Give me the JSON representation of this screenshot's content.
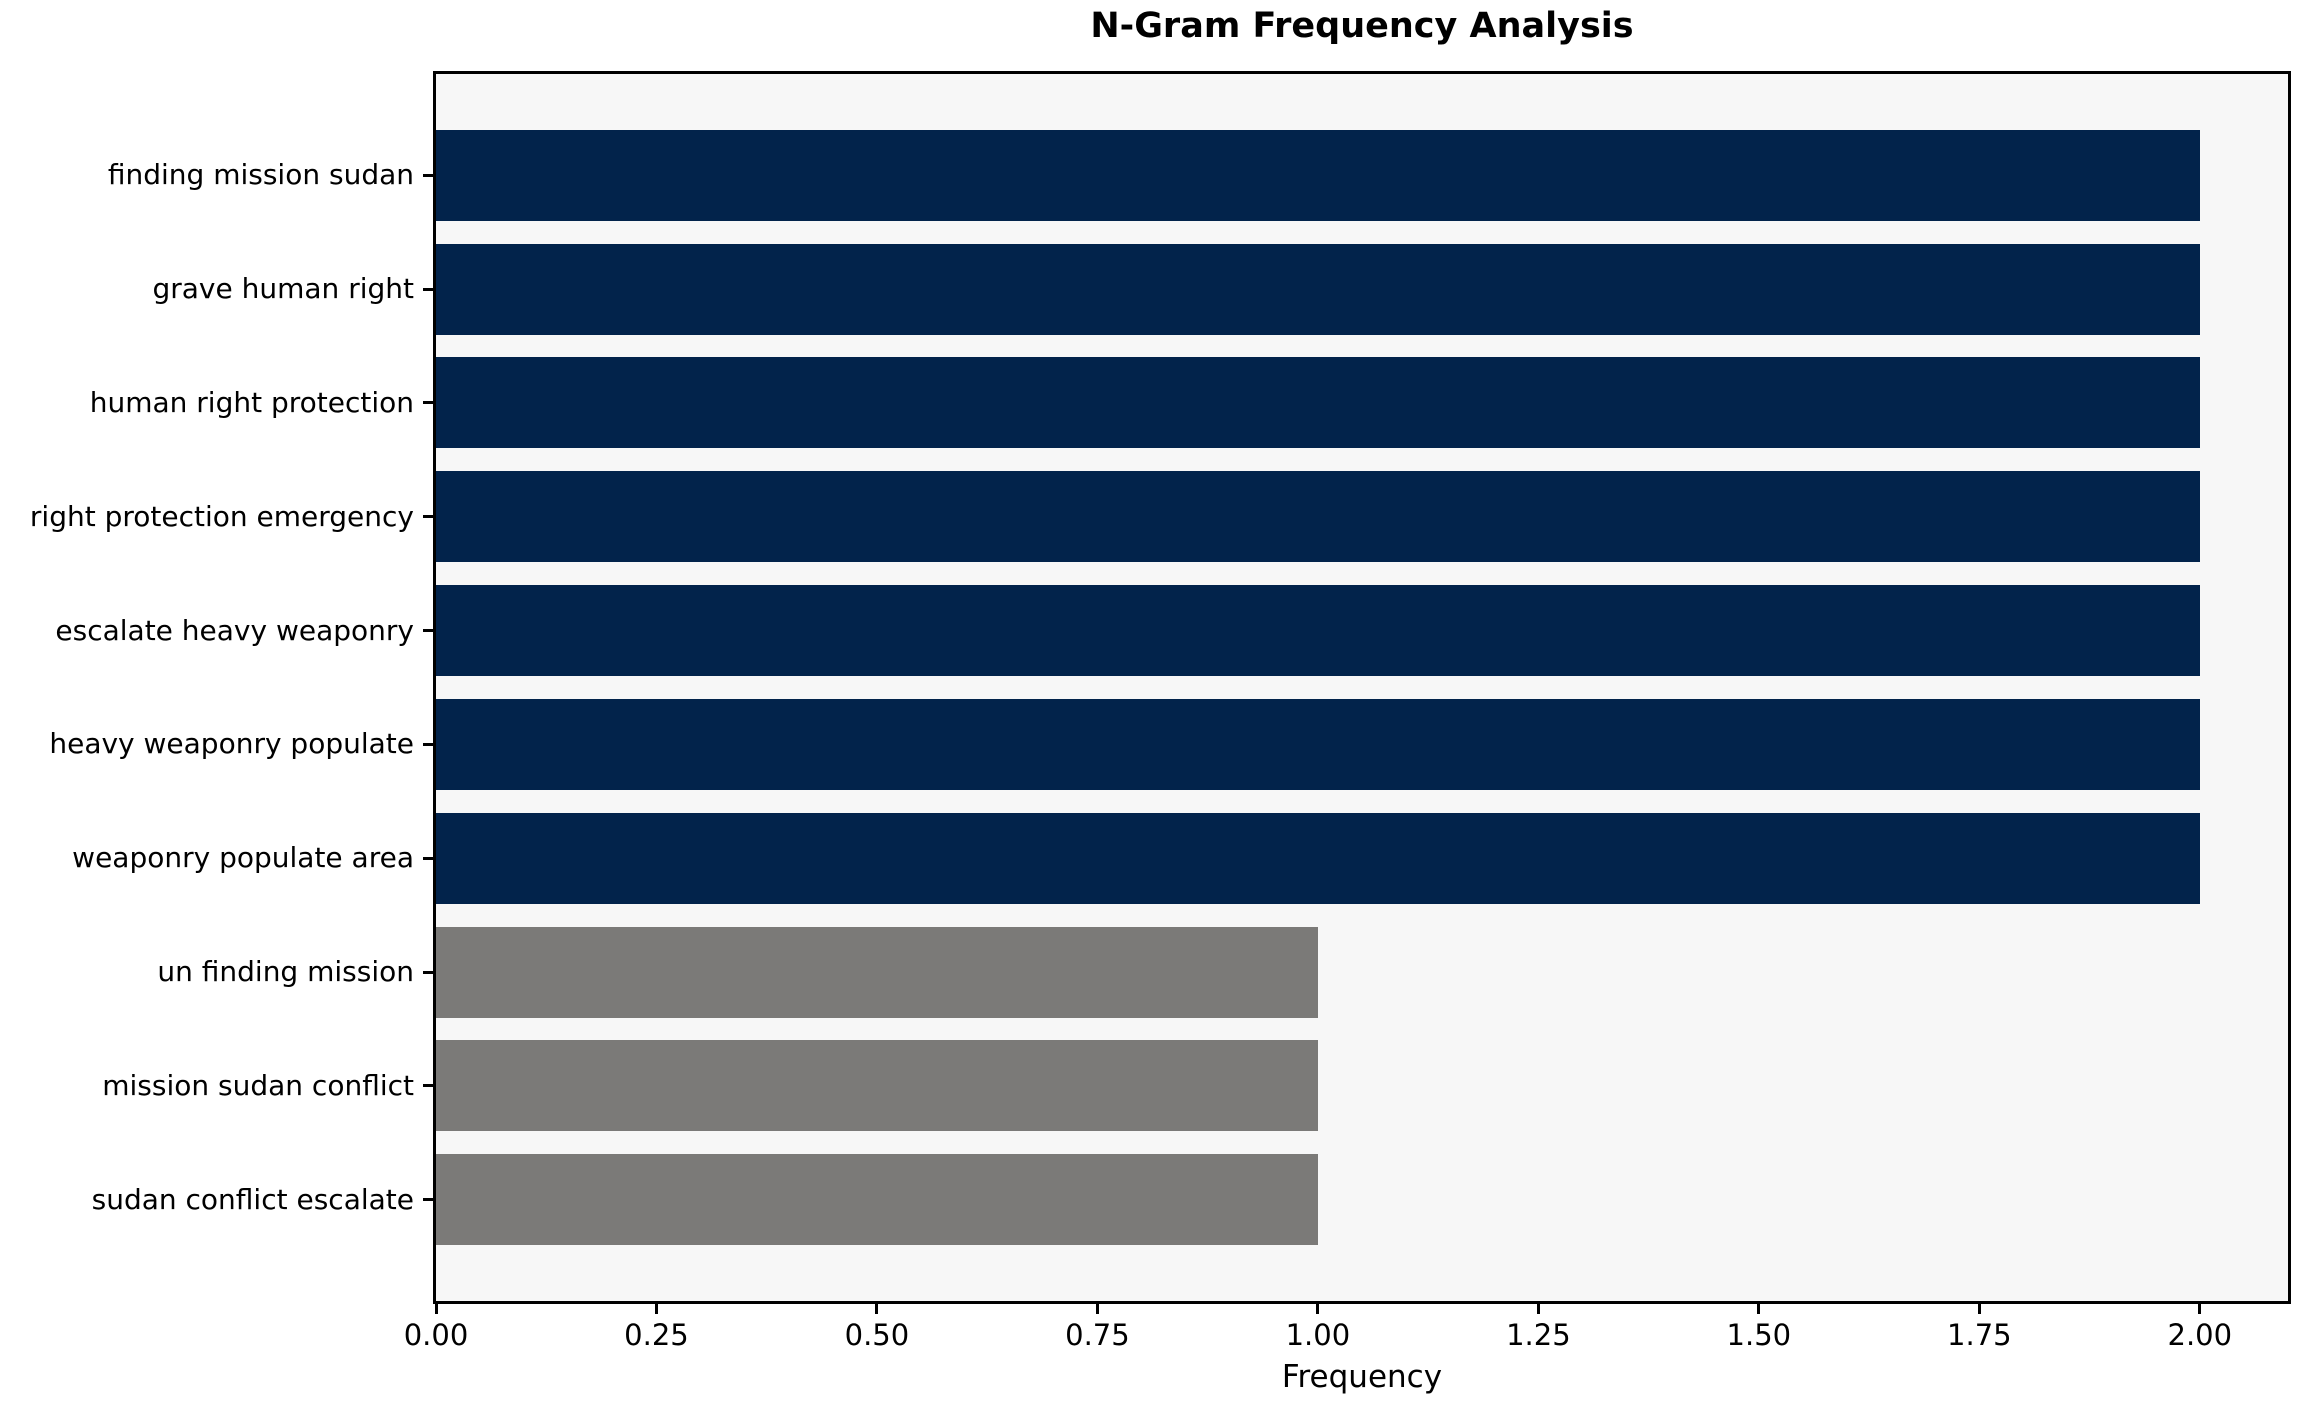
{
  "chart_data": {
    "type": "bar",
    "orientation": "horizontal",
    "title": "N-Gram Frequency Analysis",
    "xlabel": "Frequency",
    "ylabel": "",
    "categories": [
      "finding mission sudan",
      "grave human right",
      "human right protection",
      "right protection emergency",
      "escalate heavy weaponry",
      "heavy weaponry populate",
      "weaponry populate area",
      "un finding mission",
      "mission sudan conflict",
      "sudan conflict escalate"
    ],
    "values": [
      2,
      2,
      2,
      2,
      2,
      2,
      2,
      1,
      1,
      1
    ],
    "bar_colors": [
      "#02234b",
      "#02234b",
      "#02234b",
      "#02234b",
      "#02234b",
      "#02234b",
      "#02234b",
      "#7b7a78",
      "#7b7a78",
      "#7b7a78"
    ],
    "x_ticks": [
      "0.00",
      "0.25",
      "0.50",
      "0.75",
      "1.00",
      "1.25",
      "1.50",
      "1.75",
      "2.00"
    ],
    "x_tick_values": [
      0,
      0.25,
      0.5,
      0.75,
      1.0,
      1.25,
      1.5,
      1.75,
      2.0
    ],
    "xlim": [
      0,
      2.1
    ],
    "grid": false,
    "legend_position": "none",
    "colors": {
      "frequent_bar": "#02234b",
      "infrequent_bar": "#7b7a78",
      "plot_background": "#f7f7f7",
      "figure_background": "#ffffff",
      "spine": "#000000",
      "text": "#000000"
    }
  }
}
